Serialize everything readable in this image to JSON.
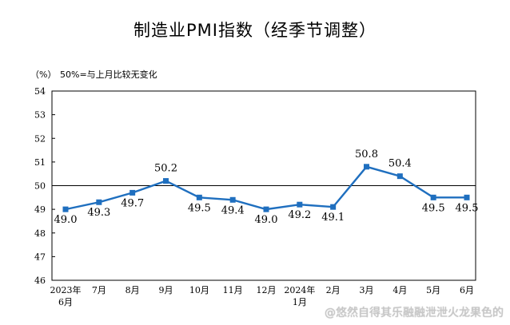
{
  "chart_data": {
    "type": "line",
    "title": "制造业PMI指数（经季节调整）",
    "unit_label": "（%）",
    "reference_note": "50%=与上月比较无变化",
    "reference_line": 50,
    "categories": [
      "2023年6月",
      "7月",
      "8月",
      "9月",
      "10月",
      "11月",
      "12月",
      "2024年1月",
      "2月",
      "3月",
      "4月",
      "5月",
      "6月"
    ],
    "tick_labels": [
      {
        "line1": "2023年",
        "line2": "6月"
      },
      {
        "line1": "7月",
        "line2": ""
      },
      {
        "line1": "8月",
        "line2": ""
      },
      {
        "line1": "9月",
        "line2": ""
      },
      {
        "line1": "10月",
        "line2": ""
      },
      {
        "line1": "11月",
        "line2": ""
      },
      {
        "line1": "12月",
        "line2": ""
      },
      {
        "line1": "2024年",
        "line2": "1月"
      },
      {
        "line1": "2月",
        "line2": ""
      },
      {
        "line1": "3月",
        "line2": ""
      },
      {
        "line1": "4月",
        "line2": ""
      },
      {
        "line1": "5月",
        "line2": ""
      },
      {
        "line1": "6月",
        "line2": ""
      }
    ],
    "series": [
      {
        "name": "制造业PMI",
        "color": "#1f6fbf",
        "values": [
          49.0,
          49.3,
          49.7,
          50.2,
          49.5,
          49.4,
          49.0,
          49.2,
          49.1,
          50.8,
          50.4,
          49.5,
          49.5
        ]
      }
    ],
    "data_labels": [
      "49.0",
      "49.3",
      "49.7",
      "50.2",
      "49.5",
      "49.4",
      "49.0",
      "49.2",
      "49.1",
      "50.8",
      "50.4",
      "49.5",
      "49.5"
    ],
    "label_placement": [
      "below",
      "below",
      "below",
      "above",
      "below",
      "below",
      "below",
      "below",
      "below",
      "above",
      "above",
      "below",
      "below"
    ],
    "ylim": [
      46,
      54
    ],
    "yticks": [
      46,
      47,
      48,
      49,
      50,
      51,
      52,
      53,
      54
    ]
  },
  "watermark": "@悠然自得其乐融融泄泄火龙果色的"
}
